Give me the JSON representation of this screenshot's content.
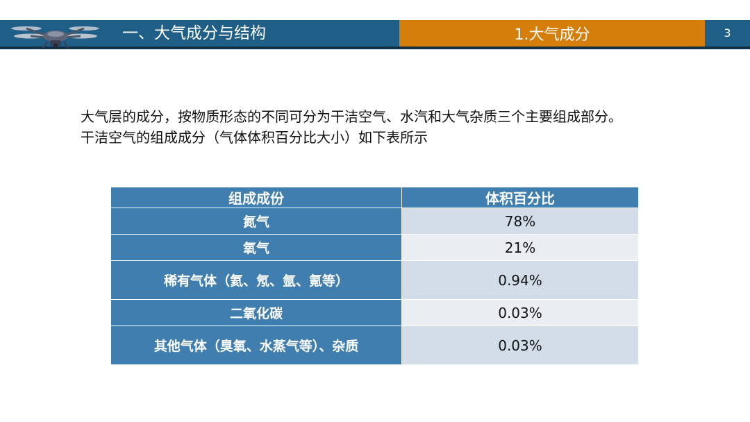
{
  "header": {
    "section_title": "一、大气成分与结构",
    "topic_title": "1.大气成分",
    "page_number": "3",
    "logo_icon": "drone-icon",
    "colors": {
      "bar": "#1f5e86",
      "accent": "#d67e0b",
      "table": "#3f7eaf"
    }
  },
  "intro": {
    "line1": "大气层的成分，按物质形态的不同可分为干洁空气、水汽和大气杂质三个主要组成部分。",
    "line2": "干洁空气的组成成分（气体体积百分比大小）如下表所示"
  },
  "table": {
    "headers": [
      "组成成份",
      "体积百分比"
    ],
    "rows": [
      {
        "name": "氮气",
        "value": "78%"
      },
      {
        "name": "氧气",
        "value": "21%"
      },
      {
        "name": "稀有气体（氦、氖、氩、氪等）",
        "value": "0.94%"
      },
      {
        "name": "二氧化碳",
        "value": "0.03%"
      },
      {
        "name": "其他气体（臭氧、水蒸气等）、杂质",
        "value": "0.03%"
      }
    ]
  }
}
